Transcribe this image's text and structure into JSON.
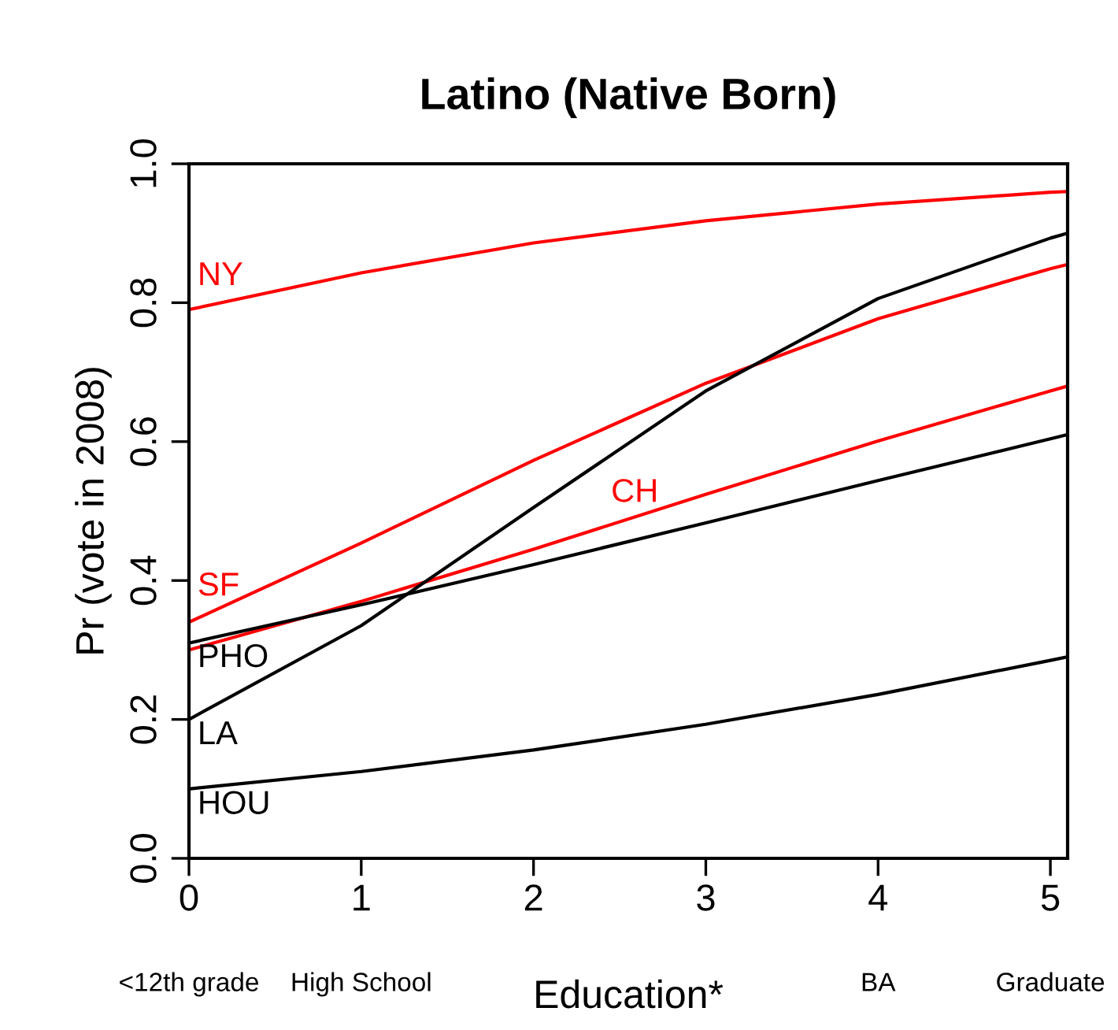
{
  "chart_data": {
    "type": "line",
    "title": "Latino (Native Born)",
    "xlabel": "Education*",
    "ylabel": "Pr (vote in 2008)",
    "x": [
      0,
      1,
      2,
      3,
      4,
      5,
      5.1
    ],
    "series": [
      {
        "name": "NY",
        "color": "#ff0000",
        "values": [
          0.79,
          0.843,
          0.886,
          0.918,
          0.942,
          0.959,
          0.96
        ]
      },
      {
        "name": "SF",
        "color": "#ff0000",
        "values": [
          0.34,
          0.454,
          0.573,
          0.684,
          0.777,
          0.849,
          0.855
        ]
      },
      {
        "name": "CH",
        "color": "#ff0000",
        "values": [
          0.3,
          0.37,
          0.445,
          0.524,
          0.601,
          0.673,
          0.68
        ]
      },
      {
        "name": "PHO",
        "color": "#000000",
        "values": [
          0.31,
          0.365,
          0.423,
          0.483,
          0.544,
          0.604,
          0.61
        ]
      },
      {
        "name": "LA",
        "color": "#000000",
        "values": [
          0.2,
          0.335,
          0.505,
          0.673,
          0.806,
          0.893,
          0.9
        ]
      },
      {
        "name": "HOU",
        "color": "#000000",
        "values": [
          0.1,
          0.125,
          0.156,
          0.193,
          0.236,
          0.285,
          0.29
        ]
      }
    ],
    "xlim": [
      0,
      5.1
    ],
    "ylim": [
      0,
      1
    ],
    "xticks": [
      0,
      1,
      2,
      3,
      4,
      5
    ],
    "yticks": [
      {
        "value": 0,
        "label": "0.0"
      },
      {
        "value": 0.2,
        "label": "0.2"
      },
      {
        "value": 0.4,
        "label": "0.4"
      },
      {
        "value": 0.6,
        "label": "0.6"
      },
      {
        "value": 0.8,
        "label": "0.8"
      },
      {
        "value": 1,
        "label": "1.0"
      }
    ],
    "annotations": [
      "<12th grade",
      "High School",
      "BA",
      "Graduate"
    ],
    "grid": false,
    "legend": false,
    "marker": "none",
    "line_style": "solid"
  }
}
